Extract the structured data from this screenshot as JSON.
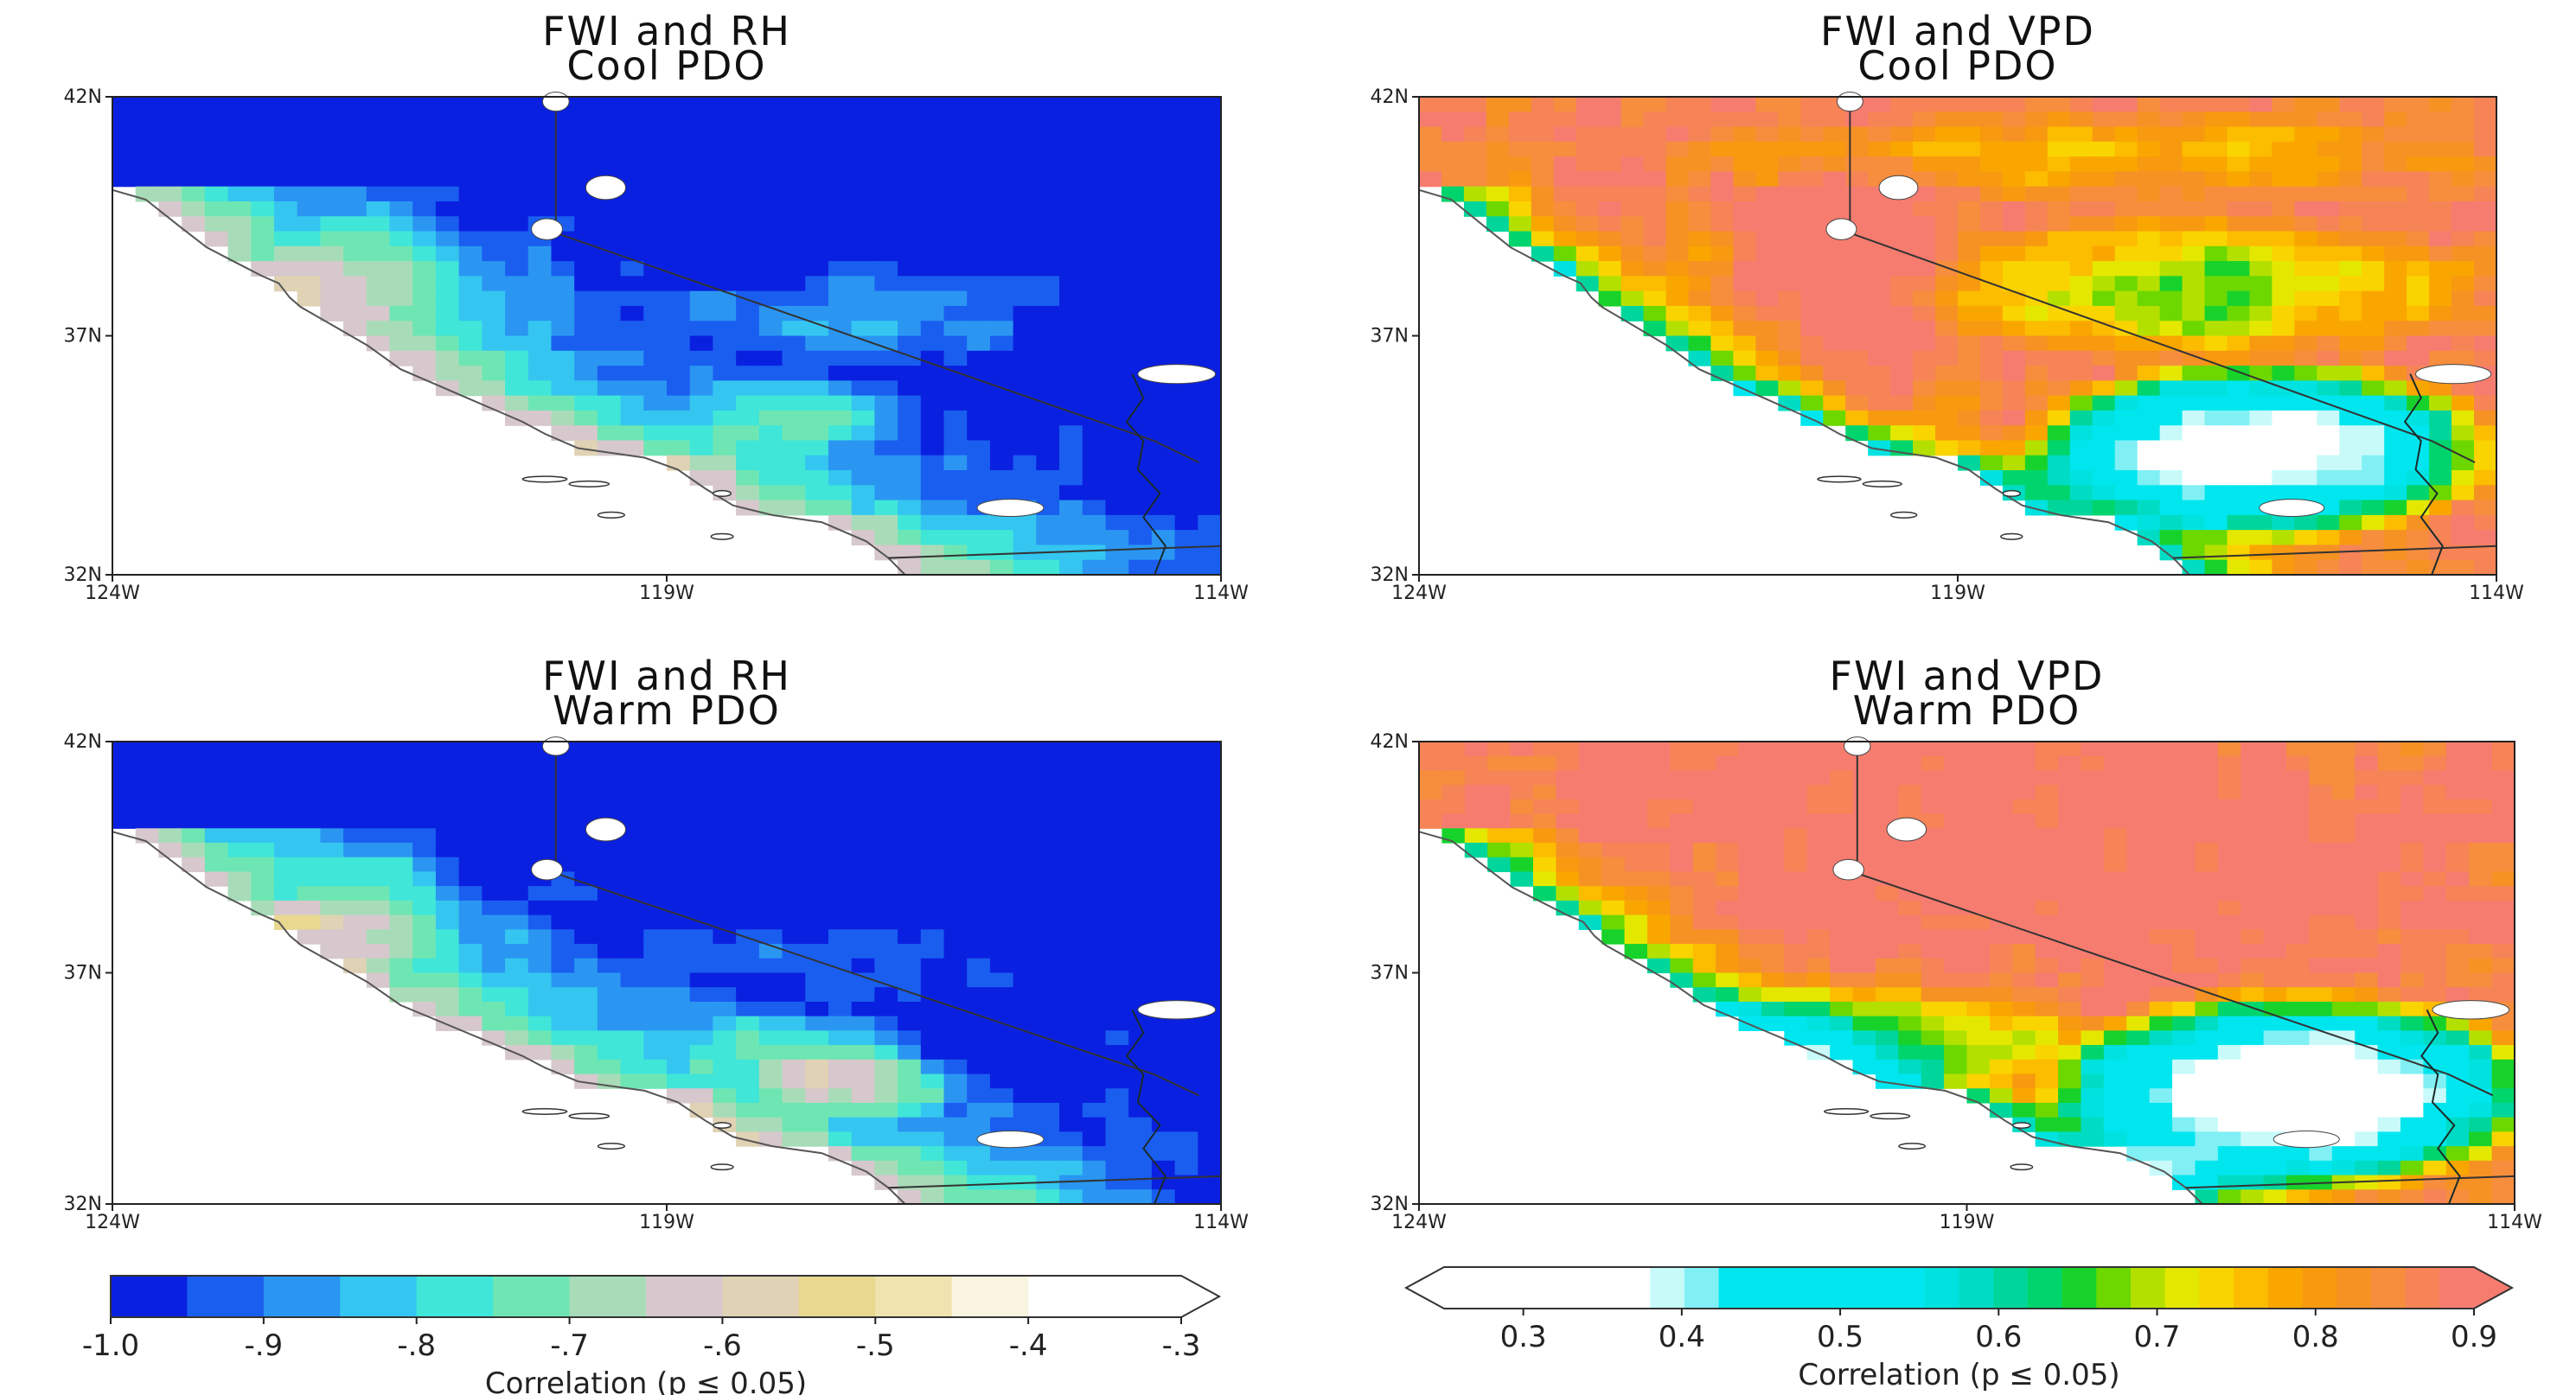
{
  "panels": [
    {
      "title": [
        "FWI and RH",
        "Cool PDO"
      ],
      "variable": "RH",
      "phase": "cool",
      "lat_ticks": [
        "42N",
        "37N",
        "32N"
      ],
      "lon_ticks": [
        "124W",
        "119W",
        "114W"
      ]
    },
    {
      "title": [
        "FWI and VPD",
        "Cool PDO"
      ],
      "variable": "VPD",
      "phase": "cool",
      "lat_ticks": [
        "42N",
        "37N",
        "32N"
      ],
      "lon_ticks": [
        "124W",
        "119W",
        "114W"
      ]
    },
    {
      "title": [
        "FWI and RH",
        "Warm PDO"
      ],
      "variable": "RH",
      "phase": "warm",
      "lat_ticks": [
        "42N",
        "37N",
        "32N"
      ],
      "lon_ticks": [
        "124W",
        "119W",
        "114W"
      ]
    },
    {
      "title": [
        "FWI and VPD",
        "Warm PDO"
      ],
      "variable": "VPD",
      "phase": "warm",
      "lat_ticks": [
        "42N",
        "37N",
        "32N"
      ],
      "lon_ticks": [
        "124W",
        "119W",
        "114W"
      ]
    }
  ],
  "colorbars": [
    {
      "label": "Correlation (p ≤ 0.05)",
      "ticks": [
        "-1.0",
        "-.9",
        "-.8",
        "-.7",
        "-.6",
        "-.5",
        "-.4",
        "-.3"
      ],
      "tick_values": [
        -1.0,
        -0.9,
        -0.8,
        -0.7,
        -0.6,
        -0.5,
        -0.4,
        -0.3
      ],
      "range": [
        -1.0,
        -0.3
      ],
      "extend": "max",
      "colors": [
        "#0a20e0",
        "#1a5ef0",
        "#2a96f2",
        "#34c6f0",
        "#40e6d8",
        "#6ee6b4",
        "#a8dcb8",
        "#d6c8cc",
        "#e0d2b4",
        "#e8d890",
        "#efe4b0",
        "#f8f4e0",
        "#ffffff",
        "#ffffff"
      ]
    },
    {
      "label": "Correlation (p ≤ 0.05)",
      "ticks": [
        "0.3",
        "0.4",
        "0.5",
        "0.6",
        "0.7",
        "0.8",
        "0.9"
      ],
      "tick_values": [
        0.3,
        0.4,
        0.5,
        0.6,
        0.7,
        0.8,
        0.9
      ],
      "range": [
        0.25,
        0.9
      ],
      "extend": "both",
      "colors": [
        "#ffffff",
        "#ffffff",
        "#ffffff",
        "#ffffff",
        "#ffffff",
        "#ffffff",
        "#c8fafa",
        "#80f0f4",
        "#00e6ef",
        "#00e6ef",
        "#00e6ef",
        "#00e6ef",
        "#00e6ef",
        "#00e6ef",
        "#00e2e0",
        "#00dcc4",
        "#00d69c",
        "#00d46c",
        "#18d22c",
        "#6cd800",
        "#b4e000",
        "#e4e800",
        "#fad400",
        "#fcbc00",
        "#faa600",
        "#f89a10",
        "#f69224",
        "#f68e3e",
        "#f68456",
        "#f67c70"
      ]
    }
  ],
  "colors": {
    "land_default": "#ffffff",
    "coast_line": "#555555",
    "border_line": "#333333"
  }
}
